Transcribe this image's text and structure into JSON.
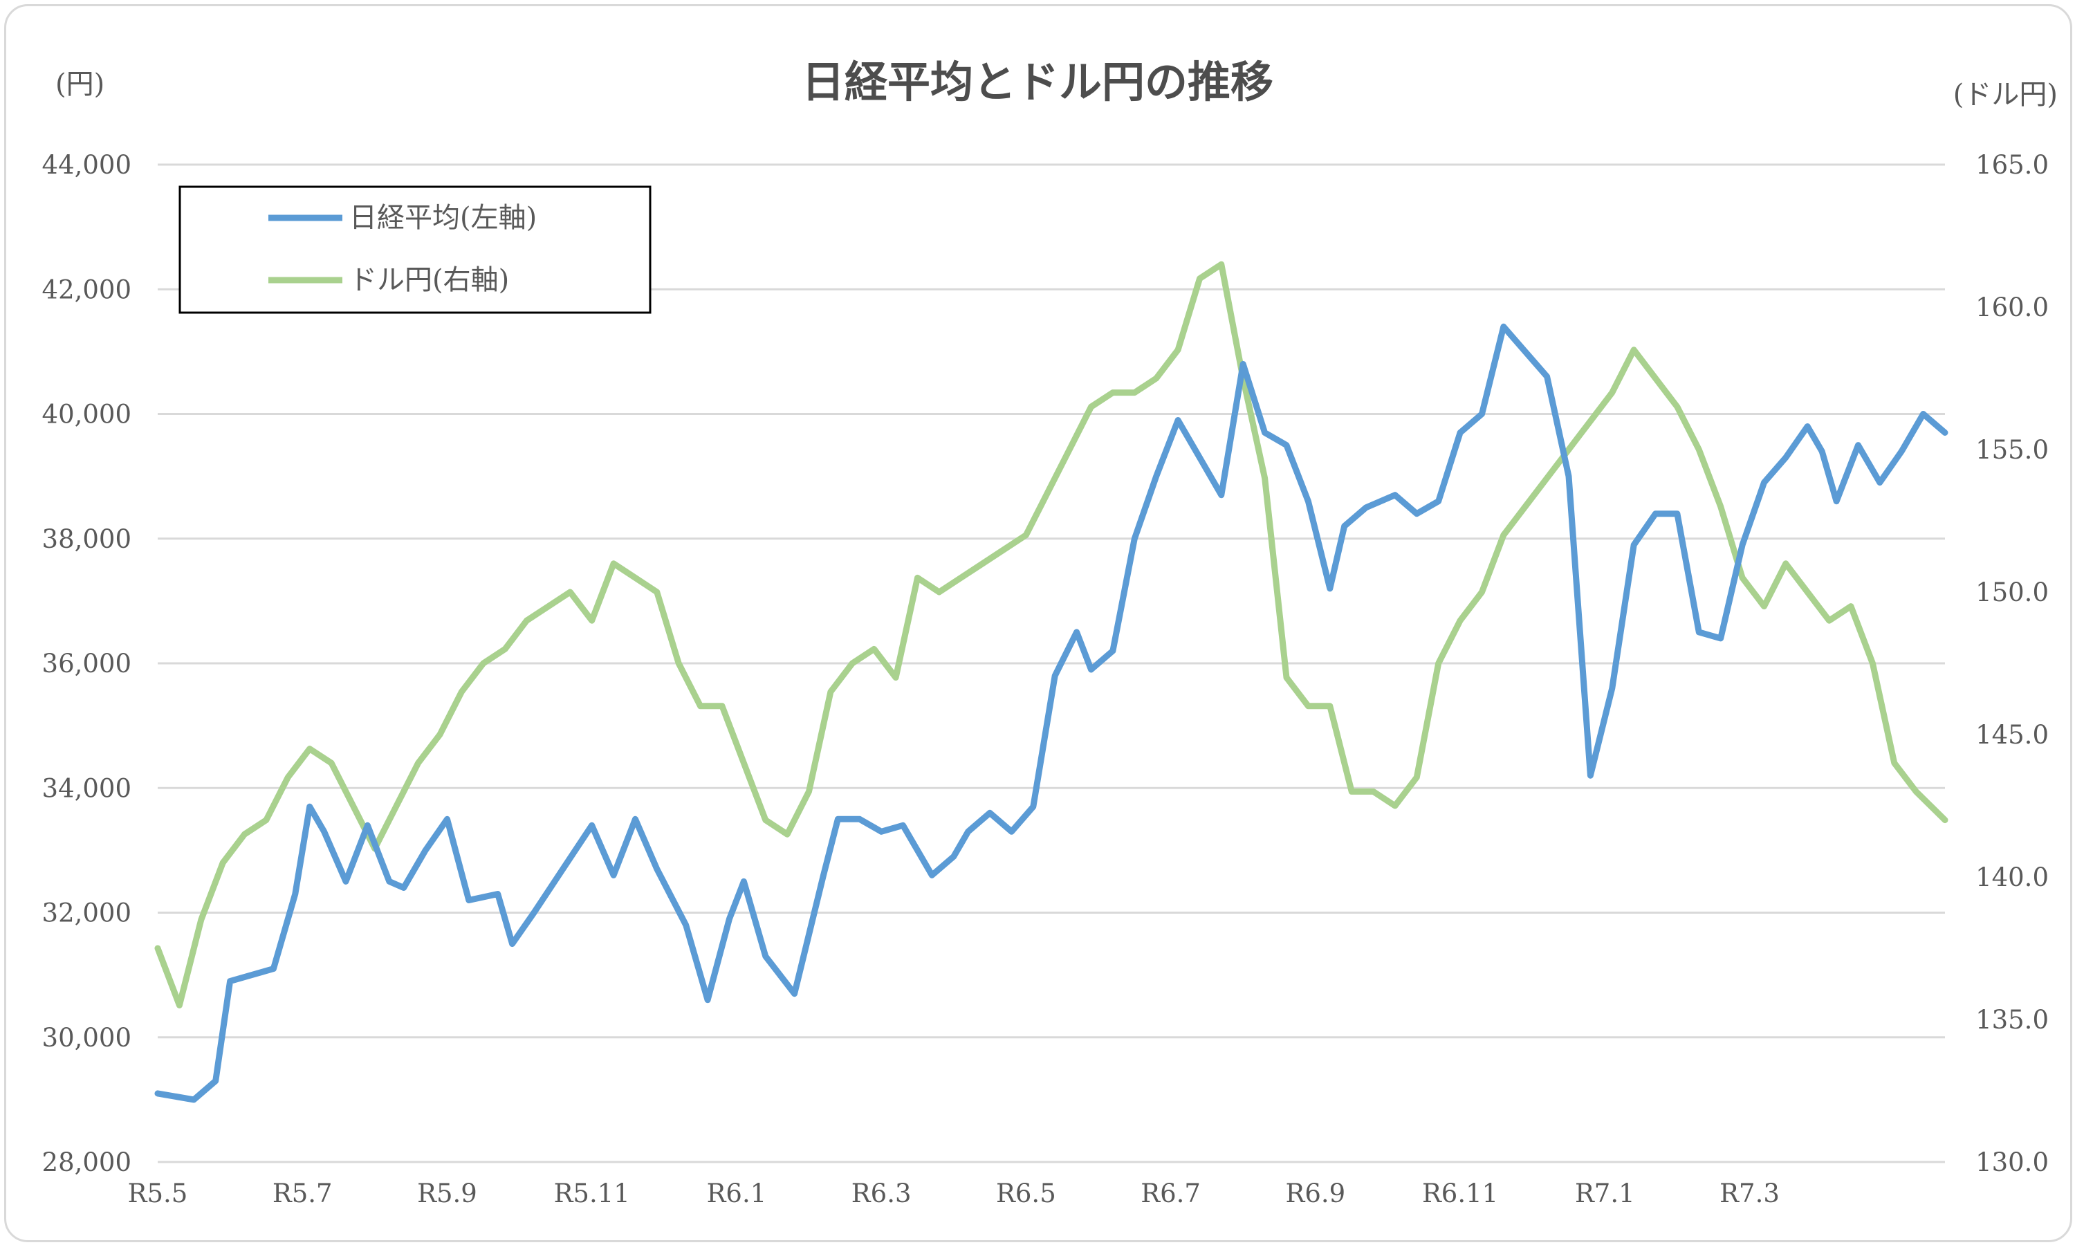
{
  "chart_data": {
    "type": "line",
    "title": "日経平均とドル円の推移",
    "left_axis_unit": "(円)",
    "right_axis_unit": "(ドル円)",
    "x_tick_labels": [
      "R5.5",
      "R5.7",
      "R5.9",
      "R5.11",
      "R6.1",
      "R6.3",
      "R6.5",
      "R6.7",
      "R6.9",
      "R6.11",
      "R7.1",
      "R7.3"
    ],
    "left_ticks": [
      "28,000",
      "30,000",
      "32,000",
      "34,000",
      "36,000",
      "38,000",
      "40,000",
      "42,000",
      "44,000"
    ],
    "right_ticks": [
      "130.0",
      "135.0",
      "140.0",
      "145.0",
      "150.0",
      "155.0",
      "160.0",
      "165.0"
    ],
    "ylim_left": [
      28000,
      44000
    ],
    "ylim_right": [
      130,
      165
    ],
    "x_range_months": [
      0,
      24.7
    ],
    "grid": true,
    "legend_position": "top-left",
    "series": [
      {
        "name": "日経平均(左軸)",
        "axis": "left",
        "color": "#5b9bd5",
        "x": [
          0,
          0.5,
          0.8,
          1.0,
          1.3,
          1.6,
          1.9,
          2.1,
          2.3,
          2.6,
          2.9,
          3.2,
          3.4,
          3.7,
          4.0,
          4.3,
          4.7,
          4.9,
          5.2,
          5.6,
          6.0,
          6.3,
          6.6,
          6.9,
          7.3,
          7.6,
          7.9,
          8.1,
          8.4,
          8.8,
          9.2,
          9.4,
          9.7,
          10.0,
          10.3,
          10.7,
          11.0,
          11.2,
          11.5,
          11.8,
          12.1,
          12.4,
          12.7,
          12.9,
          13.2,
          13.5,
          13.8,
          14.1,
          14.4,
          14.7,
          15.0,
          15.3,
          15.6,
          15.9,
          16.2,
          16.4,
          16.7,
          16.9,
          17.1,
          17.4,
          17.7,
          18.0,
          18.3,
          18.6,
          18.9,
          19.2,
          19.5,
          19.8,
          20.1,
          20.4,
          20.7,
          21.0,
          21.3,
          21.6,
          21.9,
          22.2,
          22.5,
          22.8,
          23.0,
          23.2,
          23.5,
          23.8,
          24.1,
          24.4,
          24.7
        ],
        "values": [
          29100,
          29000,
          29300,
          30900,
          31000,
          31100,
          32300,
          33700,
          33300,
          32500,
          33400,
          32500,
          32400,
          33000,
          33500,
          32200,
          32300,
          31500,
          32000,
          32700,
          33400,
          32600,
          33500,
          32700,
          31800,
          30600,
          31900,
          32500,
          31300,
          30700,
          32600,
          33500,
          33500,
          33300,
          33400,
          32600,
          32900,
          33300,
          33600,
          33300,
          33700,
          35800,
          36500,
          35900,
          36200,
          38000,
          39000,
          39900,
          39300,
          38700,
          40800,
          39700,
          39500,
          38600,
          37200,
          38200,
          38500,
          38600,
          38700,
          38400,
          38600,
          39700,
          40000,
          41400,
          41000,
          40600,
          39000,
          34200,
          35600,
          37900,
          38400,
          38400,
          36500,
          36400,
          37900,
          38900,
          39300,
          39800,
          39400,
          38600,
          39500,
          38900,
          39400,
          40000,
          39700
        ]
      },
      {
        "name": "ドル円(右軸)",
        "axis": "right",
        "color": "#a9d18e",
        "x": [
          0,
          0.3,
          0.6,
          0.9,
          1.2,
          1.5,
          1.8,
          2.1,
          2.4,
          2.7,
          3.0,
          3.3,
          3.6,
          3.9,
          4.2,
          4.5,
          4.8,
          5.1,
          5.4,
          5.7,
          6.0,
          6.3,
          6.6,
          6.9,
          7.2,
          7.5,
          7.8,
          8.1,
          8.4,
          8.7,
          9.0,
          9.3,
          9.6,
          9.9,
          10.2,
          10.5,
          10.8,
          11.1,
          11.4,
          11.7,
          12.0,
          12.3,
          12.6,
          12.9,
          13.2,
          13.5,
          13.8,
          14.1,
          14.4,
          14.7,
          15.0,
          15.3,
          15.6,
          15.9,
          16.2,
          16.5,
          16.8,
          17.1,
          17.4,
          17.7,
          18.0,
          18.3,
          18.6,
          18.9,
          19.2,
          19.5,
          19.8,
          20.1,
          20.4,
          20.7,
          21.0,
          21.3,
          21.6,
          21.9,
          22.2,
          22.5,
          22.8,
          23.1,
          23.4,
          23.7,
          24.0,
          24.3,
          24.7
        ],
        "values": [
          137.5,
          135.5,
          138.5,
          140.5,
          141.5,
          142.0,
          143.5,
          144.5,
          144.0,
          142.5,
          141.0,
          142.5,
          144.0,
          145.0,
          146.5,
          147.5,
          148.0,
          149.0,
          149.5,
          150.0,
          149.0,
          151.0,
          150.5,
          150.0,
          147.5,
          146.0,
          146.0,
          144.0,
          142.0,
          141.5,
          143.0,
          146.5,
          147.5,
          148.0,
          147.0,
          150.5,
          150.0,
          150.5,
          151.0,
          151.5,
          152.0,
          153.5,
          155.0,
          156.5,
          157.0,
          157.0,
          157.5,
          158.5,
          161.0,
          161.5,
          157.5,
          154.0,
          147.0,
          146.0,
          146.0,
          143.0,
          143.0,
          142.5,
          143.5,
          147.5,
          149.0,
          150.0,
          152.0,
          153.0,
          154.0,
          155.0,
          156.0,
          157.0,
          158.5,
          157.5,
          156.5,
          155.0,
          153.0,
          150.5,
          149.5,
          151.0,
          150.0,
          149.0,
          149.5,
          147.5,
          144.0,
          143.0,
          142.0
        ]
      }
    ]
  }
}
